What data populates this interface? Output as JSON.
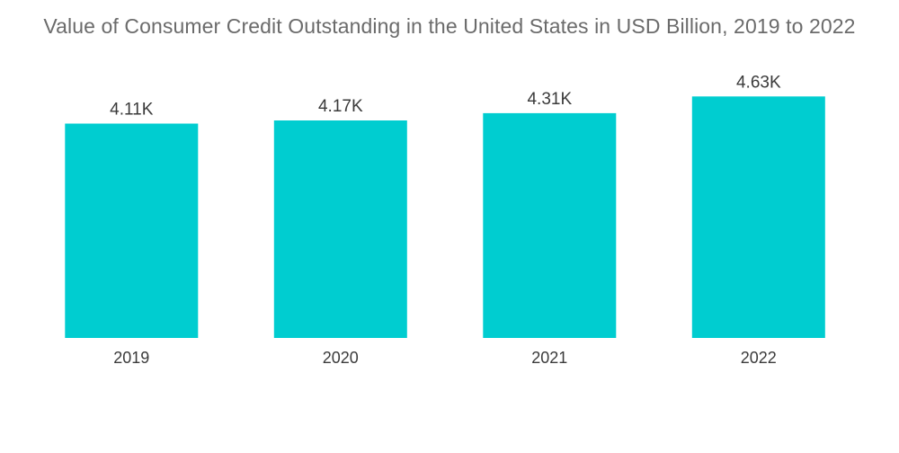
{
  "chart_data": {
    "type": "bar",
    "title": "Value of Consumer Credit Outstanding in the United States in USD Billion, 2019 to 2022",
    "categories": [
      "2019",
      "2020",
      "2021",
      "2022"
    ],
    "values": [
      4110,
      4170,
      4310,
      4630
    ],
    "value_labels": [
      "4.11K",
      "4.17K",
      "4.31K",
      "4.63K"
    ],
    "xlabel": "",
    "ylabel": "",
    "ylim": [
      0,
      5100
    ],
    "grid": false,
    "axis_visible": false,
    "bar_color": "#00CDD0"
  }
}
